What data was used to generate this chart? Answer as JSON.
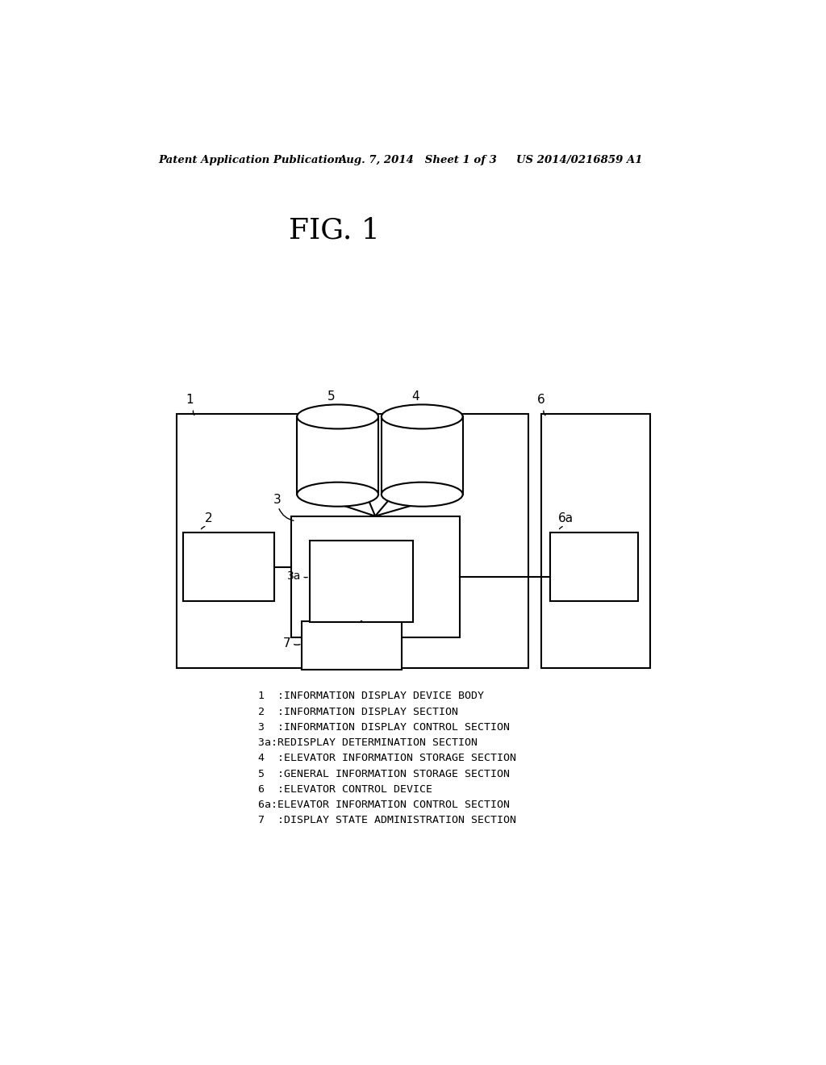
{
  "bg_color": "#ffffff",
  "title_text": "FIG. 1",
  "header_left": "Patent Application Publication",
  "header_mid": "Aug. 7, 2014   Sheet 1 of 3",
  "header_right": "US 2014/0216859 A1",
  "legend_lines": [
    "1  :INFORMATION DISPLAY DEVICE BODY",
    "2  :INFORMATION DISPLAY SECTION",
    "3  :INFORMATION DISPLAY CONTROL SECTION",
    "3a:REDISPLAY DETERMINATION SECTION",
    "4  :ELEVATOR INFORMATION STORAGE SECTION",
    "5  :GENERAL INFORMATION STORAGE SECTION",
    "6  :ELEVATOR CONTROL DEVICE",
    "6a:ELEVATOR INFORMATION CONTROL SECTION",
    "7  :DISPLAY STATE ADMINISTRATION SECTION"
  ],
  "line_color": "#000000",
  "text_color": "#000000"
}
